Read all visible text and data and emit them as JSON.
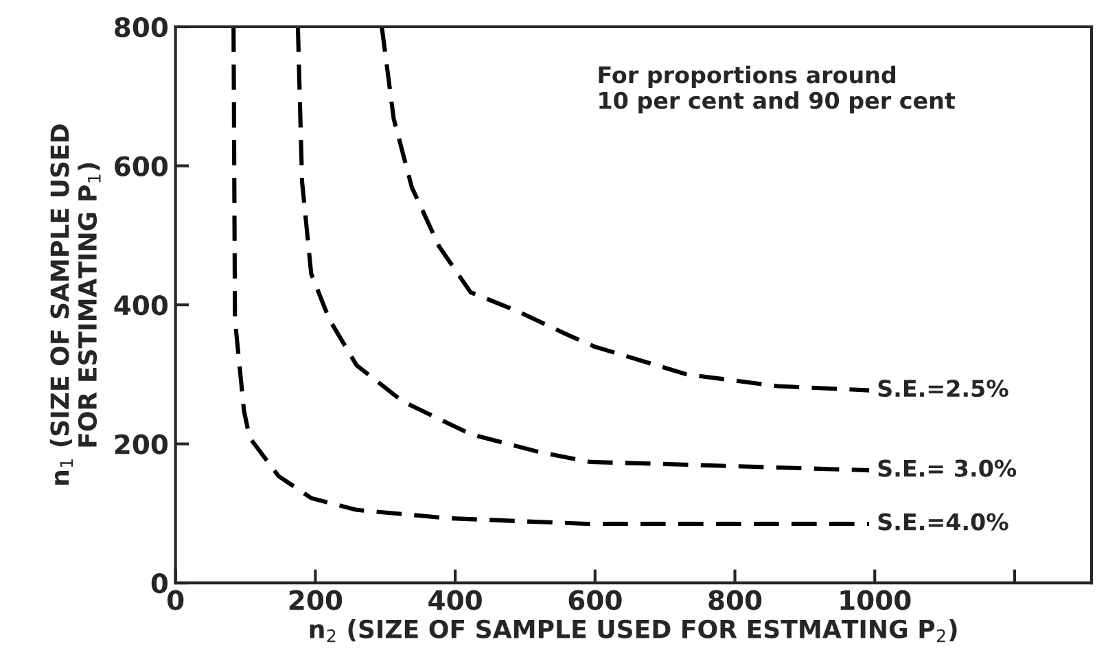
{
  "chart_data": {
    "type": "line",
    "xlabel": "n$_{2}$ (SIZE OF SAMPLE USED FOR ESTMATING P$_{2}$)",
    "ylabel": "n$_{1}$ (SIZE OF SAMPLE USED\nFOR ESTIMATING P$_{1}$)",
    "annotations": [
      "For proportions around\n10 per cent and 90 per cent"
    ],
    "series": [
      {
        "name": "S.E.=2.5%",
        "color": "#000000",
        "x": [
          295,
          312,
          338,
          377,
          422,
          489,
          554,
          599,
          731,
          862,
          992
        ],
        "values": [
          800,
          668,
          569,
          484,
          418,
          391,
          360,
          340,
          300,
          283,
          277
        ]
      },
      {
        "name": "S.E.= 3.0%",
        "color": "#000000",
        "x": [
          175,
          181,
          194,
          220,
          259,
          325,
          422,
          521,
          593,
          666,
          992
        ],
        "values": [
          800,
          577,
          445,
          379,
          313,
          261,
          214,
          188,
          174,
          172,
          162
        ]
      },
      {
        "name": "S.E.=4.0%",
        "color": "#000000",
        "x": [
          83,
          85,
          98,
          106,
          147,
          194,
          259,
          391,
          587,
          992
        ],
        "values": [
          800,
          379,
          247,
          209,
          154,
          122,
          105,
          93,
          85,
          85
        ]
      }
    ],
    "xlim": [
      0,
      1310
    ],
    "ylim": [
      0,
      800
    ],
    "xticks": [
      0,
      200,
      400,
      600,
      800,
      1000,
      {
        "value": 1200,
        "label": null
      }
    ],
    "yticks": [
      0,
      200,
      400,
      600,
      800
    ],
    "grid": false,
    "marker": "none",
    "line_style": "dashed"
  }
}
